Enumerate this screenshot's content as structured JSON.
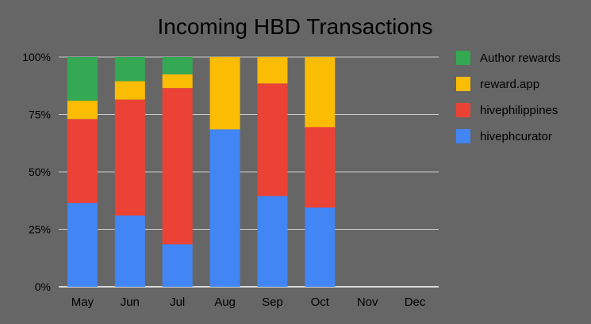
{
  "chart_data": {
    "type": "bar",
    "stacked": true,
    "normalized_percent": true,
    "title": "Incoming HBD Transactions",
    "xlabel": "",
    "ylabel": "",
    "ylim": [
      0,
      100
    ],
    "y_ticks": [
      "0%",
      "25%",
      "50%",
      "75%",
      "100%"
    ],
    "categories": [
      "May",
      "Jun",
      "Jul",
      "Aug",
      "Sep",
      "Oct",
      "Nov",
      "Dec"
    ],
    "series": [
      {
        "name": "hivephcurator",
        "color": "#4285F4",
        "values": [
          36.5,
          31,
          18.5,
          68.5,
          39.5,
          34.5,
          0,
          0
        ]
      },
      {
        "name": "hivephilippines",
        "color": "#EA4335",
        "values": [
          36.5,
          50.5,
          68,
          0,
          49,
          35,
          0,
          0
        ]
      },
      {
        "name": "reward.app",
        "color": "#FBBC04",
        "values": [
          8,
          8,
          6,
          31.5,
          11.5,
          30.5,
          0,
          0
        ]
      },
      {
        "name": "Author rewards",
        "color": "#34A853",
        "values": [
          19,
          10.5,
          7.5,
          0,
          0,
          0,
          0,
          0
        ]
      }
    ],
    "legend_position": "right",
    "legend_order": [
      "Author rewards",
      "reward.app",
      "hivephilippines",
      "hivephcurator"
    ],
    "grid": true,
    "background_color": "#666666",
    "text_color": "#000000",
    "grid_color": "#cccccc"
  }
}
